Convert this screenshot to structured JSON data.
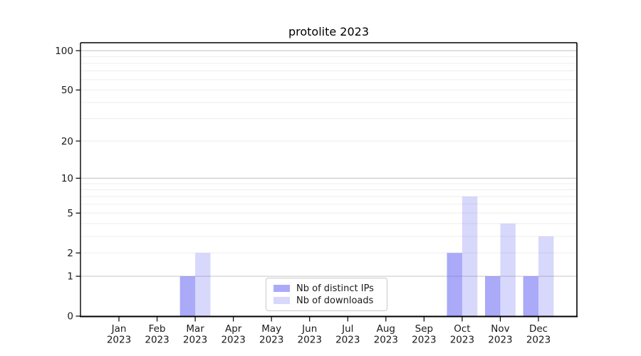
{
  "chart_data": {
    "type": "bar",
    "title": "protolite 2023",
    "categories": [
      "Jan",
      "Feb",
      "Mar",
      "Apr",
      "May",
      "Jun",
      "Jul",
      "Aug",
      "Sep",
      "Oct",
      "Nov",
      "Dec"
    ],
    "xtick_second_line": "2023",
    "series": [
      {
        "name": "Nb of distinct IPs",
        "color": "rgba(85,85,243,0.5)",
        "values": [
          0,
          0,
          1,
          0,
          0,
          0,
          0,
          0,
          0,
          2,
          1,
          1
        ]
      },
      {
        "name": "Nb of downloads",
        "color": "rgba(85,85,243,0.23)",
        "values": [
          0,
          0,
          2,
          0,
          0,
          0,
          0,
          0,
          0,
          7,
          4,
          3
        ]
      }
    ],
    "xlabel": "",
    "ylabel": "",
    "yscale": "log1p",
    "ylim": [
      0,
      115
    ],
    "ytick_labels": [
      0,
      1,
      2,
      5,
      10,
      20,
      50,
      100
    ],
    "gridlines_major": [
      1,
      10,
      100
    ],
    "gridlines_minor": [
      2,
      3,
      4,
      5,
      6,
      7,
      8,
      9,
      20,
      30,
      40,
      50,
      60,
      70,
      80,
      90
    ],
    "grid": "horizontal",
    "legend_position": "lower center",
    "colors": {
      "grid_major": "#c6c6c6",
      "grid_minor": "#ededed",
      "axis": "#000000",
      "tick_text": "#1a1a1a"
    }
  }
}
